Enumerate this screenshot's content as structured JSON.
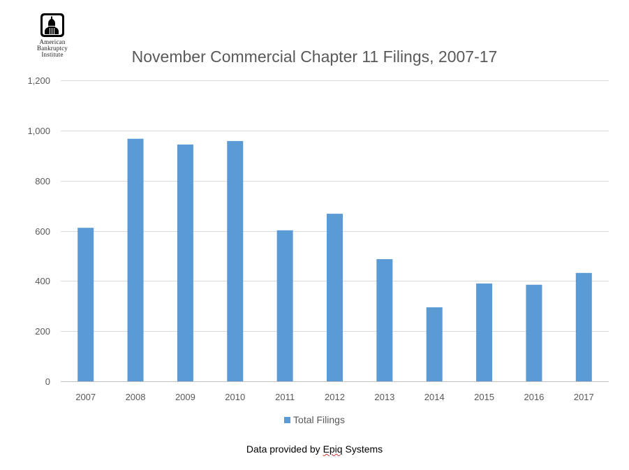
{
  "logo": {
    "lines": [
      "American",
      "Bankruptcy",
      "Institute"
    ]
  },
  "chart_data": {
    "type": "bar",
    "title": "November Commercial Chapter 11 Filings, 2007-17",
    "categories": [
      "2007",
      "2008",
      "2009",
      "2010",
      "2011",
      "2012",
      "2013",
      "2014",
      "2015",
      "2016",
      "2017"
    ],
    "series": [
      {
        "name": "Total Filings",
        "values": [
          612,
          967,
          944,
          958,
          602,
          668,
          487,
          295,
          390,
          385,
          432
        ],
        "color": "#5B9BD5"
      }
    ],
    "ylim": [
      0,
      1200
    ],
    "yticks": [
      0,
      200,
      400,
      600,
      800,
      1000,
      1200
    ],
    "ytick_labels": [
      "0",
      "200",
      "400",
      "600",
      "800",
      "1,000",
      "1,200"
    ],
    "grid": true,
    "legend": "bottom"
  },
  "footer": {
    "prefix": "Data provided by ",
    "source_word": "Epiq",
    "suffix": " Systems"
  }
}
